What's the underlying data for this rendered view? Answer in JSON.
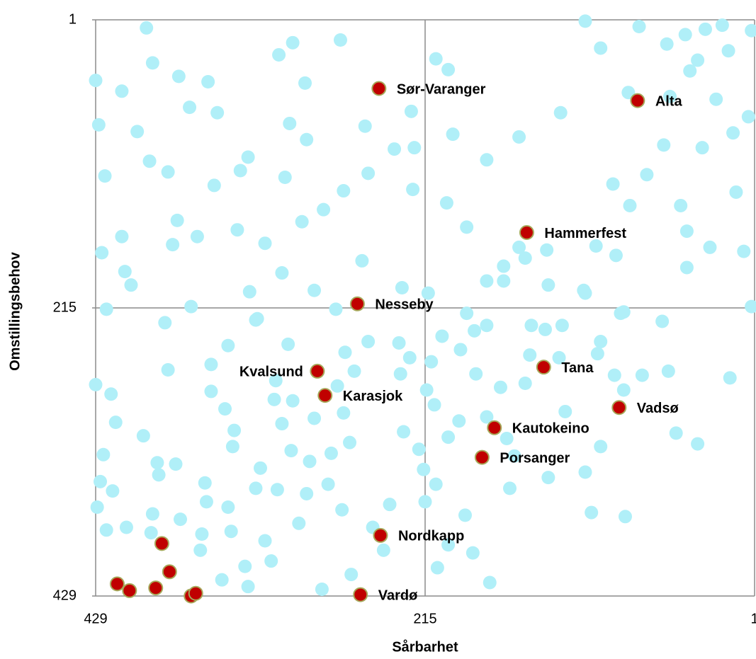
{
  "chart_data": {
    "type": "scatter",
    "xlabel": "Sårbarhet",
    "ylabel": "Omstillingsbehov",
    "xlim": [
      429,
      1
    ],
    "ylim": [
      429,
      1
    ],
    "xticks": [
      429,
      215,
      1
    ],
    "yticks": [
      1,
      215,
      429
    ],
    "grid": true,
    "series": [
      {
        "color": "#b0eff8",
        "x": [
          396,
          392,
          429,
          412,
          427,
          423,
          375,
          356,
          368,
          350,
          402,
          394,
          382,
          352,
          335,
          330,
          310,
          301,
          293,
          303,
          292,
          306,
          270,
          254,
          235,
          222,
          224,
          208,
          200,
          197,
          268,
          252,
          223,
          281,
          295,
          319,
          308,
          337,
          376,
          363,
          379,
          412,
          425,
          410,
          406,
          422,
          367,
          384,
          329,
          324,
          287,
          273,
          256,
          230,
          213,
          201,
          188,
          175,
          154,
          127,
          111,
          101,
          83,
          76,
          58,
          46,
          33,
          22,
          3,
          18,
          38,
          43,
          56,
          26,
          5,
          15,
          35,
          60,
          71,
          93,
          82,
          49,
          13,
          8,
          30,
          45,
          45,
          104,
          91,
          111,
          88,
          61,
          57,
          17,
          3,
          38,
          52,
          101,
          111,
          107,
          85,
          124,
          135,
          160,
          189,
          184,
          173,
          207,
          200,
          208,
          215,
          216,
          219,
          229,
          238,
          242,
          249,
          263,
          282,
          292,
          278,
          269,
          264,
          276,
          290,
          302,
          322,
          325,
          311,
          297,
          319,
          315,
          332,
          330,
          347,
          361,
          374,
          392,
          393,
          409,
          422,
          428,
          418,
          426,
          424,
          416,
          419,
          429,
          398,
          389,
          377,
          388,
          358,
          357,
          343,
          341,
          360,
          382,
          354,
          354,
          343,
          345,
          339,
          340,
          312,
          304,
          325,
          313,
          308,
          301,
          287,
          268,
          261,
          272,
          267,
          252,
          232,
          225,
          231,
          214,
          209,
          211,
          204,
          192,
          183,
          175,
          188,
          175,
          164,
          164,
          154,
          150,
          136,
          135,
          146,
          137,
          147,
          128,
          126,
          112,
          101,
          103,
          86,
          92,
          74,
          86,
          166,
          150,
          175,
          193,
          200,
          182,
          162,
          157
        ],
        "y": [
          7,
          33,
          46,
          54,
          79,
          117,
          43,
          47,
          66,
          70,
          84,
          106,
          114,
          124,
          113,
          103,
          27,
          18,
          48,
          78,
          90,
          118,
          16,
          80,
          97,
          96,
          69,
          30,
          38,
          86,
          128,
          115,
          127,
          142,
          151,
          167,
          189,
          157,
          150,
          162,
          168,
          162,
          174,
          188,
          198,
          216,
          214,
          226,
          203,
          223,
          202,
          216,
          180,
          200,
          204,
          137,
          155,
          105,
          88,
          70,
          2,
          22,
          55,
          6,
          19,
          12,
          8,
          5,
          9,
          24,
          31,
          39,
          58,
          60,
          73,
          85,
          96,
          94,
          116,
          123,
          139,
          139,
          129,
          173,
          170,
          158,
          185,
          169,
          176,
          204,
          219,
          225,
          262,
          267,
          214,
          316,
          308,
          318,
          337,
          367,
          370,
          292,
          341,
          349,
          369,
          397,
          419,
          408,
          391,
          346,
          359,
          335,
          320,
          307,
          361,
          395,
          378,
          413,
          424,
          353,
          346,
          365,
          315,
          323,
          329,
          321,
          334,
          349,
          350,
          375,
          388,
          403,
          407,
          422,
          417,
          395,
          372,
          368,
          382,
          378,
          380,
          363,
          351,
          344,
          324,
          300,
          279,
          272,
          310,
          330,
          331,
          339,
          345,
          359,
          363,
          381,
          383,
          261,
          257,
          277,
          243,
          290,
          306,
          318,
          269,
          242,
          224,
          283,
          301,
          284,
          297,
          293,
          262,
          273,
          248,
          240,
          241,
          252,
          264,
          276,
          287,
          255,
          236,
          246,
          232,
          228,
          219,
          195,
          195,
          184,
          170,
          178,
          172,
          198,
          228,
          231,
          250,
          252,
          228,
          202,
          240,
          249,
          218,
          265,
          265,
          276,
          274,
          271,
          296,
          299,
          311,
          264,
          312,
          325
        ]
      },
      {
        "color": "#c00000",
        "x": [
          245,
          77,
          149,
          259,
          285,
          280,
          138,
          89,
          170,
          178,
          244,
          257,
          386,
          381,
          415,
          407,
          390,
          367,
          364
        ],
        "y": [
          52,
          61,
          159,
          212,
          262,
          280,
          259,
          289,
          304,
          326,
          384,
          428,
          390,
          411,
          420,
          425,
          423,
          429,
          427
        ],
        "labels": [
          "Sør-Varanger",
          "Alta",
          "Hammerfest",
          "Nesseby",
          "Kvalsund",
          "Karasjok",
          "Tana",
          "Vadsø",
          "Kautokeino",
          "Porsanger",
          "Nordkapp",
          "Vardø",
          null,
          null,
          null,
          null,
          null,
          null,
          null
        ]
      }
    ]
  }
}
